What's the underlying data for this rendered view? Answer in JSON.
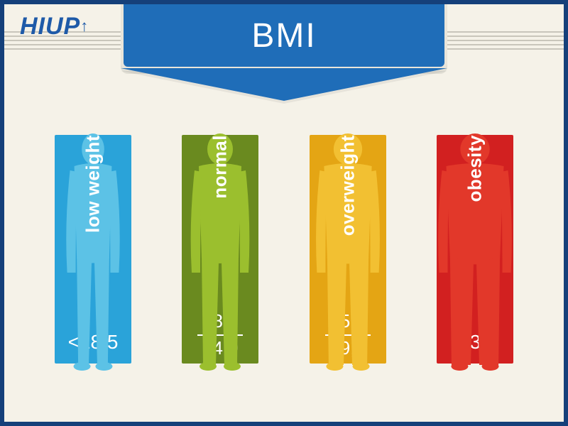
{
  "logo_text": "HIUP",
  "title": "BMI",
  "background_color": "#f5f2e8",
  "border_color": "#15407a",
  "banner_color": "#1f6db8",
  "banner_text_color": "#ffffff",
  "logo_color": "#1e5aa8",
  "label_color": "#ffffff",
  "label_fontsize": 26,
  "title_fontsize": 48,
  "categories": [
    {
      "id": "low",
      "label": "low weight",
      "range_single": "<18,5",
      "panel_color": "#2aa3d9",
      "figure_color": "#5cc2e6",
      "figure_scale": 0.88
    },
    {
      "id": "normal",
      "label": "normal",
      "range_top": "18,5",
      "range_bot": "24,9",
      "panel_color": "#6a8a1f",
      "figure_color": "#9bbf2e",
      "figure_scale": 1.0
    },
    {
      "id": "over",
      "label": "overweight",
      "range_top": "25,0",
      "range_bot": "29,9",
      "panel_color": "#e4a514",
      "figure_color": "#f2c032",
      "figure_scale": 1.12
    },
    {
      "id": "obesity",
      "label": "obesity",
      "range_single": ">30",
      "panel_color": "#d22020",
      "figure_color": "#e2382a",
      "figure_scale": 1.35
    }
  ]
}
